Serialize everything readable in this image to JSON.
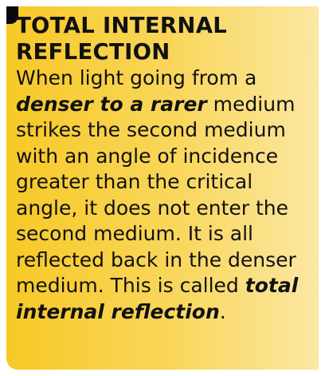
{
  "box": {
    "title_line1": "TOTAL INTERNAL",
    "title_line2": "REFLECTION",
    "text_before": "When light going from a ",
    "emphasis_1": "denser to a rarer",
    "text_middle": " medium strikes the second medium with an angle of incidence greater than the critical angle, it does not enter the second medium. It is all reflected back in the denser medium. This is called ",
    "emphasis_2": "total internal reflection",
    "text_end": "."
  },
  "colors": {
    "background_start": "#f7c826",
    "background_end": "#fbe7a3",
    "text": "#111111",
    "corner": "#0a0a0a"
  }
}
